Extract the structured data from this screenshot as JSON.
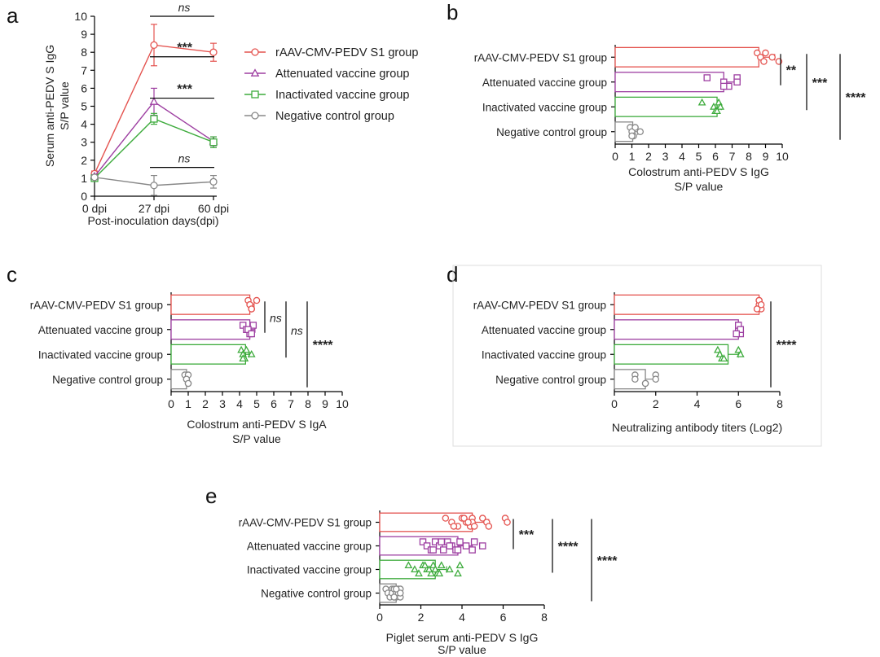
{
  "colors": {
    "rAAV": "#e4534f",
    "attenuated": "#9d3ea1",
    "inactivated": "#3dab3c",
    "negative": "#888888",
    "sig_attenuated": "#8e3b95",
    "sig_inactivated": "#3aa83a",
    "sig_ns_top": "#e4534f",
    "sig_ns_bottom": "#888888"
  },
  "panels": {
    "a": "a",
    "b": "b",
    "c": "c",
    "d": "d",
    "e": "e"
  },
  "chart_data": [
    {
      "id": "a",
      "type": "line",
      "ylabel": "Serum anti-PEDV S IgG\nS/P value",
      "xlabel": "Post-inoculation days(dpi)",
      "categories": [
        "0 dpi",
        "27 dpi",
        "60 dpi"
      ],
      "ylim": [
        0,
        10
      ],
      "yticks": [
        0,
        1,
        2,
        3,
        4,
        5,
        6,
        7,
        8,
        9,
        10
      ],
      "series": [
        {
          "name": "rAAV-CMV-PEDV S1 group",
          "key": "rAAV",
          "marker": "circle",
          "values": [
            1.25,
            8.4,
            8.0
          ],
          "err": [
            0.15,
            1.15,
            0.5
          ]
        },
        {
          "name": "Attenuated vaccine group",
          "key": "attenuated",
          "marker": "triangle",
          "values": [
            1.1,
            5.25,
            3.05
          ],
          "err": [
            0.1,
            0.75,
            0.25
          ]
        },
        {
          "name": "Inactivated vaccine group",
          "key": "inactivated",
          "marker": "square",
          "values": [
            1.0,
            4.3,
            3.0
          ],
          "err": [
            0.1,
            0.3,
            0.3
          ]
        },
        {
          "name": "Negative control group",
          "key": "negative",
          "marker": "circle",
          "values": [
            1.05,
            0.6,
            0.8
          ],
          "err": [
            0.1,
            0.55,
            0.35
          ]
        }
      ],
      "annotations": [
        {
          "text": "ns",
          "color_key": "sig_ns_top",
          "style": "ns",
          "y": 10.0
        },
        {
          "text": "***",
          "color_key": "sig_attenuated",
          "style": "sig",
          "y": 7.75
        },
        {
          "text": "***",
          "color_key": "sig_inactivated",
          "style": "sig",
          "y": 5.45
        },
        {
          "text": "ns",
          "color_key": "sig_ns_bottom",
          "style": "ns",
          "y": 1.6
        }
      ]
    },
    {
      "id": "b",
      "type": "bar",
      "xlabel": "Colostrum anti-PEDV S IgG\nS/P value",
      "xlim": [
        0,
        10
      ],
      "xticks": [
        0,
        1,
        2,
        3,
        4,
        5,
        6,
        7,
        8,
        9,
        10
      ],
      "categories": [
        "rAAV-CMV-PEDV S1 group",
        "Attenuated vaccine group",
        "Inactivated vaccine group",
        "Negative control group"
      ],
      "series": [
        {
          "key": "rAAV",
          "marker": "circle",
          "mean": 8.6,
          "sd": 0.95,
          "points": [
            8.5,
            8.7,
            8.9,
            9.0,
            9.4,
            9.8
          ]
        },
        {
          "key": "attenuated",
          "marker": "square",
          "mean": 6.5,
          "sd": 0.7,
          "points": [
            5.5,
            6.5,
            6.8,
            7.3,
            7.3,
            6.5
          ]
        },
        {
          "key": "inactivated",
          "marker": "triangle",
          "mean": 6.1,
          "sd": 0.25,
          "points": [
            5.2,
            5.9,
            6.0,
            6.2,
            6.3,
            6.1
          ]
        },
        {
          "key": "negative",
          "marker": "circle",
          "mean": 1.05,
          "sd": 0.3,
          "points": [
            0.9,
            1.0,
            1.1,
            1.2,
            1.5,
            1.0
          ]
        }
      ],
      "brackets": [
        {
          "text": "**",
          "span": [
            0,
            1
          ]
        },
        {
          "text": "***",
          "span": [
            0,
            2
          ]
        },
        {
          "text": "****",
          "span": [
            0,
            3
          ]
        }
      ]
    },
    {
      "id": "c",
      "type": "bar",
      "xlabel": "Colostrum anti-PEDV S IgA\nS/P value",
      "xlim": [
        0,
        10
      ],
      "xticks": [
        0,
        1,
        2,
        3,
        4,
        5,
        6,
        7,
        8,
        9,
        10
      ],
      "categories": [
        "rAAV-CMV-PEDV S1 group",
        "Attenuated vaccine group",
        "Inactivated vaccine group",
        "Negative control group"
      ],
      "series": [
        {
          "key": "rAAV",
          "marker": "circle",
          "mean": 4.6,
          "sd": 0.25,
          "points": [
            4.5,
            4.6,
            4.7,
            5.0,
            4.6,
            4.7
          ]
        },
        {
          "key": "attenuated",
          "marker": "square",
          "mean": 4.6,
          "sd": 0.3,
          "points": [
            4.2,
            4.4,
            4.6,
            4.8,
            4.5,
            4.7
          ]
        },
        {
          "key": "inactivated",
          "marker": "triangle",
          "mean": 4.35,
          "sd": 0.2,
          "points": [
            4.1,
            4.2,
            4.3,
            4.4,
            4.7,
            4.2
          ]
        },
        {
          "key": "negative",
          "marker": "circle",
          "mean": 0.9,
          "sd": 0.12,
          "points": [
            0.8,
            0.9,
            1.0,
            1.0,
            0.9,
            1.0
          ]
        }
      ],
      "brackets": [
        {
          "text": "ns",
          "span": [
            0,
            1
          ],
          "style": "ns"
        },
        {
          "text": "ns",
          "span": [
            0,
            2
          ],
          "style": "ns"
        },
        {
          "text": "****",
          "span": [
            0,
            3
          ]
        }
      ]
    },
    {
      "id": "d",
      "type": "bar",
      "xlabel": "Neutralizing antibody titers (Log2)",
      "xlim": [
        0,
        8
      ],
      "xticks": [
        0,
        2,
        4,
        6,
        8
      ],
      "categories": [
        "rAAV-CMV-PEDV S1 group",
        "Attenuated vaccine group",
        "Inactivated vaccine group",
        "Negative control group"
      ],
      "series": [
        {
          "key": "rAAV",
          "marker": "circle",
          "mean": 7.0,
          "sd": 0.1,
          "points": [
            7.0,
            7.0,
            7.1,
            7.0,
            7.1,
            6.9
          ]
        },
        {
          "key": "attenuated",
          "marker": "square",
          "mean": 6.0,
          "sd": 0.1,
          "points": [
            6.0,
            6.0,
            6.1,
            6.0,
            6.1,
            5.9
          ]
        },
        {
          "key": "inactivated",
          "marker": "triangle",
          "mean": 5.5,
          "sd": 0.5,
          "points": [
            5.0,
            5.1,
            5.2,
            6.0,
            6.1,
            5.3
          ]
        },
        {
          "key": "negative",
          "marker": "circle",
          "mean": 1.5,
          "sd": 0.55,
          "points": [
            1.0,
            1.0,
            1.5,
            2.0,
            2.0,
            1.5
          ]
        }
      ],
      "brackets": [
        {
          "text": "****",
          "span": [
            0,
            3
          ]
        }
      ]
    },
    {
      "id": "e",
      "type": "bar",
      "xlabel": "Piglet serum anti-PEDV S IgG\nS/P value",
      "xlim": [
        0,
        8
      ],
      "xticks": [
        0,
        2,
        4,
        6,
        8
      ],
      "categories": [
        "rAAV-CMV-PEDV S1 group",
        "Attenuated vaccine group",
        "Inactivated vaccine group",
        "Negative control group"
      ],
      "series": [
        {
          "key": "rAAV",
          "marker": "circle",
          "mean": 4.5,
          "sd": 0.8,
          "points": [
            3.2,
            3.5,
            3.8,
            4.0,
            4.2,
            4.4,
            4.5,
            4.5,
            4.6,
            5.0,
            5.2,
            5.3,
            6.1,
            6.2,
            3.6,
            4.1,
            4.3
          ]
        },
        {
          "key": "attenuated",
          "marker": "square",
          "mean": 3.8,
          "sd": 0.7,
          "points": [
            2.1,
            2.3,
            2.5,
            2.7,
            2.9,
            3.1,
            3.3,
            3.5,
            3.7,
            3.9,
            4.2,
            4.5,
            4.6,
            5.0,
            2.6,
            3.0,
            3.4,
            3.8
          ]
        },
        {
          "key": "inactivated",
          "marker": "triangle",
          "mean": 2.7,
          "sd": 0.55,
          "points": [
            1.4,
            1.7,
            1.9,
            2.1,
            2.3,
            2.5,
            2.6,
            2.7,
            2.8,
            3.0,
            3.4,
            3.8,
            3.9,
            2.4,
            2.9,
            2.2
          ]
        },
        {
          "key": "negative",
          "marker": "circle",
          "mean": 0.8,
          "sd": 0.2,
          "points": [
            0.3,
            0.4,
            0.5,
            0.6,
            0.6,
            0.7,
            0.7,
            0.8,
            0.8,
            0.9,
            0.9,
            1.0,
            1.0,
            1.0,
            0.7,
            0.8
          ]
        }
      ],
      "brackets": [
        {
          "text": "***",
          "span": [
            0,
            1
          ]
        },
        {
          "text": "****",
          "span": [
            0,
            2
          ]
        },
        {
          "text": "****",
          "span": [
            0,
            3
          ]
        }
      ]
    }
  ]
}
